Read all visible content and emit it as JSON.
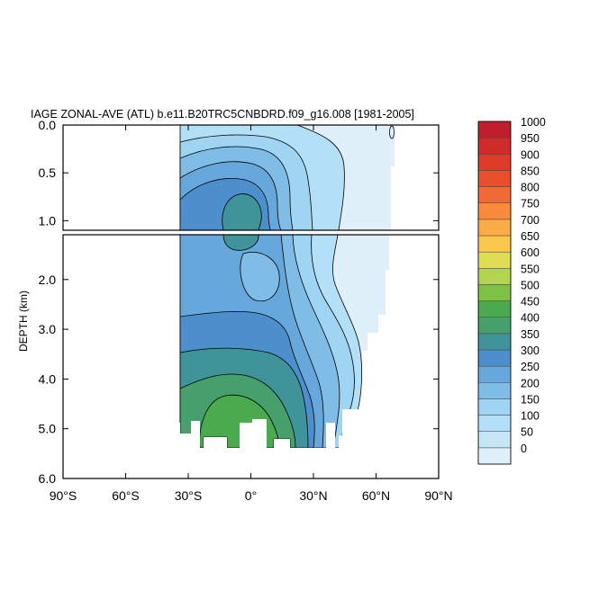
{
  "chart_data": {
    "type": "heatmap",
    "title": "IAGE ZONAL-AVE (ATL) b.e11.B20TRC5CNBDRD.f09_g16.008 [1981-2005]",
    "ylabel": "DEPTH (km)",
    "xlabel": "",
    "x_ticks": [
      "90°S",
      "60°S",
      "30°S",
      "0°",
      "30°N",
      "60°N",
      "90°N"
    ],
    "x_tick_values": [
      -90,
      -60,
      -30,
      0,
      30,
      60,
      90
    ],
    "upper_panel": {
      "ylim": [
        0.0,
        1.1
      ],
      "y_ticks": [
        "0.0",
        "0.5",
        "1.0"
      ],
      "y_tick_values": [
        0.0,
        0.5,
        1.0
      ]
    },
    "lower_panel": {
      "ylim": [
        1.1,
        6.0
      ],
      "y_ticks": [
        "2.0",
        "3.0",
        "4.0",
        "5.0",
        "6.0"
      ],
      "y_tick_values": [
        2.0,
        3.0,
        4.0,
        5.0,
        6.0
      ]
    },
    "xlim": [
      -90,
      90
    ],
    "colorbar": {
      "labels": [
        "1000",
        "950",
        "900",
        "850",
        "800",
        "750",
        "700",
        "650",
        "600",
        "550",
        "500",
        "450",
        "400",
        "350",
        "300",
        "250",
        "200",
        "150",
        "100",
        "50",
        "0"
      ],
      "levels": [
        0,
        50,
        100,
        150,
        200,
        250,
        300,
        350,
        400,
        450,
        500,
        550,
        600,
        650,
        700,
        750,
        800,
        850,
        900,
        950,
        1000
      ],
      "colors": [
        "#dff0fb",
        "#c6e6f8",
        "#b3dff7",
        "#9fd4f2",
        "#7fbde6",
        "#67a8dc",
        "#4d8fcd",
        "#3f9499",
        "#47a06c",
        "#4aab4e",
        "#7ec244",
        "#b2d44e",
        "#e0dd55",
        "#fbc84c",
        "#fbab47",
        "#f88b3c",
        "#f16a33",
        "#e8502d",
        "#df3a2a",
        "#d12a2a",
        "#be1e2d"
      ]
    },
    "grid": false
  }
}
